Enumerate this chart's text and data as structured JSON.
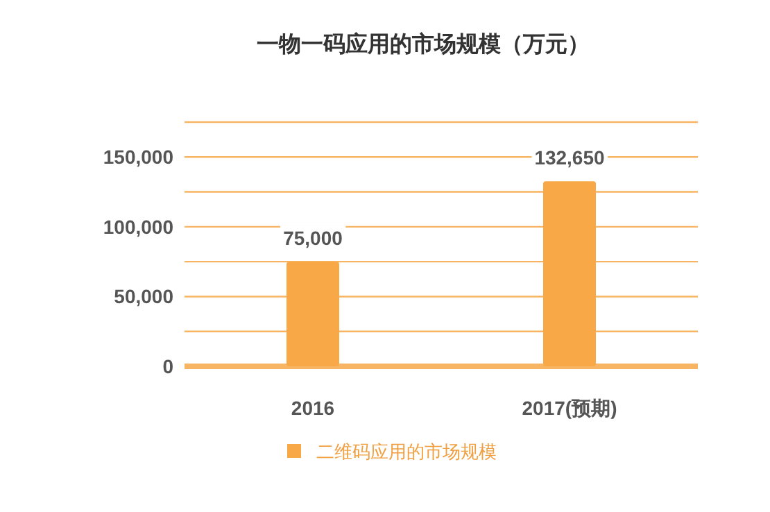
{
  "chart_data": {
    "type": "bar",
    "title": "一物一码应用的市场规模（万元）",
    "categories": [
      "2016",
      "2017(预期)"
    ],
    "series": [
      {
        "name": "二维码应用的市场规模",
        "color": "#f9a848",
        "values": [
          75000,
          132650
        ],
        "value_labels": [
          "75,000",
          "132,650"
        ]
      }
    ],
    "ylim": [
      0,
      175000
    ],
    "yticks": [
      0,
      {
        "value": 25000,
        "label": null
      },
      {
        "value": 50000,
        "label": "50,000"
      },
      {
        "value": 75000,
        "label": null
      },
      {
        "value": 100000,
        "label": "100,000"
      },
      {
        "value": 125000,
        "label": null
      },
      {
        "value": 150000,
        "label": "150,000"
      },
      {
        "value": 175000,
        "label": null
      }
    ],
    "grid": "y",
    "legend": "bottom"
  }
}
